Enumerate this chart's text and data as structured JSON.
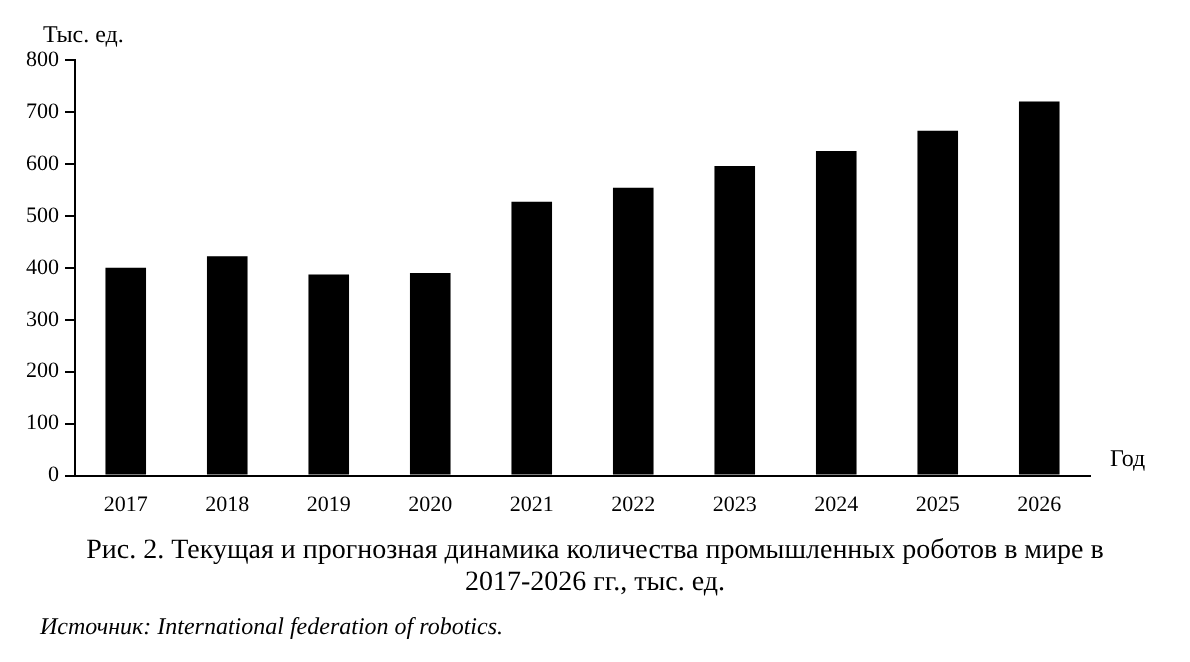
{
  "chart_data": {
    "type": "bar",
    "title": "Рис. 2. Текущая и прогнозная динамика количества промышленных роботов в мире в 2017-2026 гг., тыс. ед.",
    "ylabel": "Тыс. ед.",
    "xlabel": "Год",
    "categories": [
      "2017",
      "2018",
      "2019",
      "2020",
      "2021",
      "2022",
      "2023",
      "2024",
      "2025",
      "2026"
    ],
    "values": [
      400,
      422,
      387,
      390,
      527,
      554,
      596,
      625,
      664,
      720
    ],
    "color": "#000000",
    "ylim": [
      0,
      800
    ],
    "yticks": [
      0,
      100,
      200,
      300,
      400,
      500,
      600,
      700,
      800
    ],
    "grid": false,
    "legend": false,
    "annotations": [
      "Источник: International federation of robotics."
    ]
  }
}
